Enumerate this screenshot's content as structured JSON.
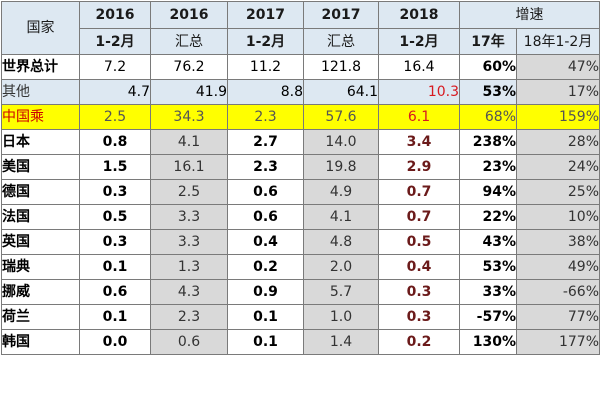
{
  "header": {
    "country": "国家",
    "cols": [
      {
        "year": "2016",
        "period": "1-2月"
      },
      {
        "year": "2016",
        "period": "汇总"
      },
      {
        "year": "2017",
        "period": "1-2月"
      },
      {
        "year": "2017",
        "period": "汇总"
      },
      {
        "year": "2018",
        "period": "1-2月"
      }
    ],
    "growth": "增速",
    "growth_cols": [
      "17年",
      "18年1-2月"
    ]
  },
  "rows": [
    {
      "name": "世界总计",
      "values": [
        "7.2",
        "76.2",
        "11.2",
        "121.8",
        "16.4"
      ],
      "g17": "60%",
      "g18": "47%"
    },
    {
      "name": "其他",
      "values": [
        "4.7",
        "41.9",
        "8.8",
        "64.1",
        "10.3"
      ],
      "g17": "53%",
      "g18": "17%"
    },
    {
      "name": "中国乘",
      "values": [
        "2.5",
        "34.3",
        "2.3",
        "57.6",
        "6.1"
      ],
      "g17": "68%",
      "g18": "159%"
    },
    {
      "name": "日本",
      "values": [
        "0.8",
        "4.1",
        "2.7",
        "14.0",
        "3.4"
      ],
      "g17": "238%",
      "g18": "28%"
    },
    {
      "name": "美国",
      "values": [
        "1.5",
        "16.1",
        "2.3",
        "19.8",
        "2.9"
      ],
      "g17": "23%",
      "g18": "24%"
    },
    {
      "name": "德国",
      "values": [
        "0.3",
        "2.5",
        "0.6",
        "4.9",
        "0.7"
      ],
      "g17": "94%",
      "g18": "25%"
    },
    {
      "name": "法国",
      "values": [
        "0.5",
        "3.3",
        "0.6",
        "4.1",
        "0.7"
      ],
      "g17": "22%",
      "g18": "10%"
    },
    {
      "name": "英国",
      "values": [
        "0.3",
        "3.3",
        "0.4",
        "4.8",
        "0.5"
      ],
      "g17": "43%",
      "g18": "38%"
    },
    {
      "name": "瑞典",
      "values": [
        "0.1",
        "1.3",
        "0.2",
        "2.0",
        "0.4"
      ],
      "g17": "53%",
      "g18": "49%"
    },
    {
      "name": "挪威",
      "values": [
        "0.6",
        "4.3",
        "0.9",
        "5.7",
        "0.3"
      ],
      "g17": "33%",
      "g18": "-66%"
    },
    {
      "name": "荷兰",
      "values": [
        "0.1",
        "2.3",
        "0.1",
        "1.0",
        "0.3"
      ],
      "g17": "-57%",
      "g18": "77%"
    },
    {
      "name": "韩国",
      "values": [
        "0.0",
        "0.6",
        "0.1",
        "1.4",
        "0.2"
      ],
      "g17": "130%",
      "g18": "177%"
    }
  ]
}
